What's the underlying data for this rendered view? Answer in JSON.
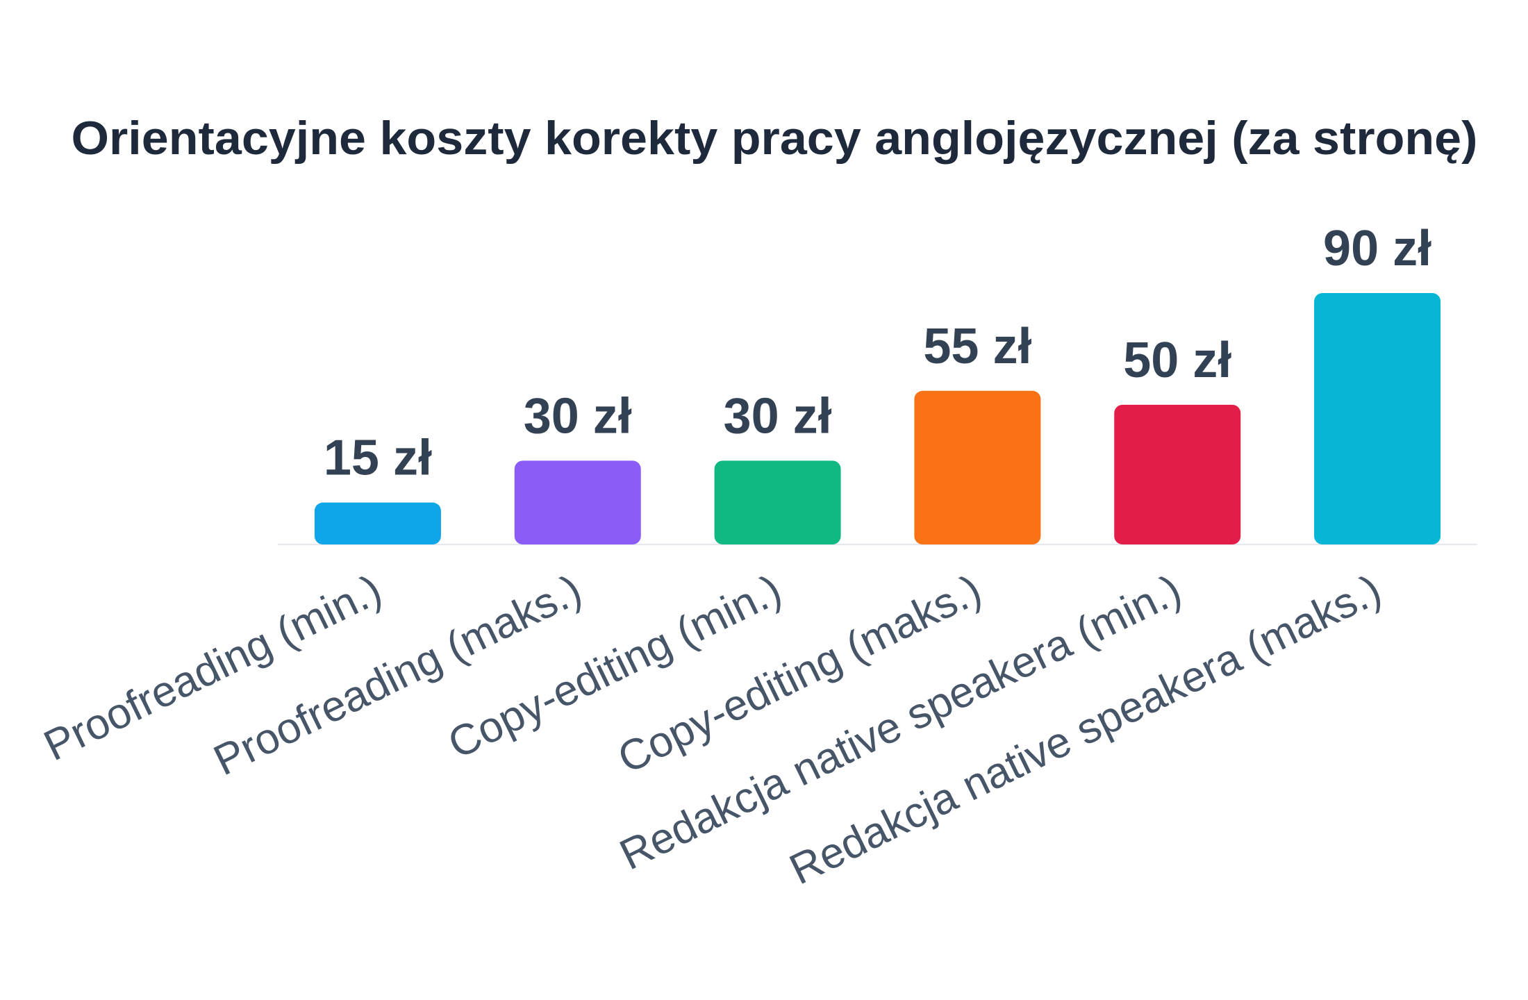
{
  "chart_data": {
    "type": "bar",
    "title": "Orientacyjne koszty korekty pracy anglojęzycznej (za stronę)",
    "categories": [
      "Proofreading (min.)",
      "Proofreading (maks.)",
      "Copy-editing (min.)",
      "Copy-editing (maks.)",
      "Redakcja native speakera (min.)",
      "Redakcja native speakera (maks.)"
    ],
    "values": [
      15,
      30,
      30,
      55,
      50,
      90
    ],
    "value_labels": [
      "15 zł",
      "30 zł",
      "30 zł",
      "55 zł",
      "50 zł",
      "90 zł"
    ],
    "colors": [
      "#0ea5e9",
      "#8b5cf6",
      "#10b981",
      "#f97316",
      "#e11d48",
      "#06b6d4"
    ]
  }
}
